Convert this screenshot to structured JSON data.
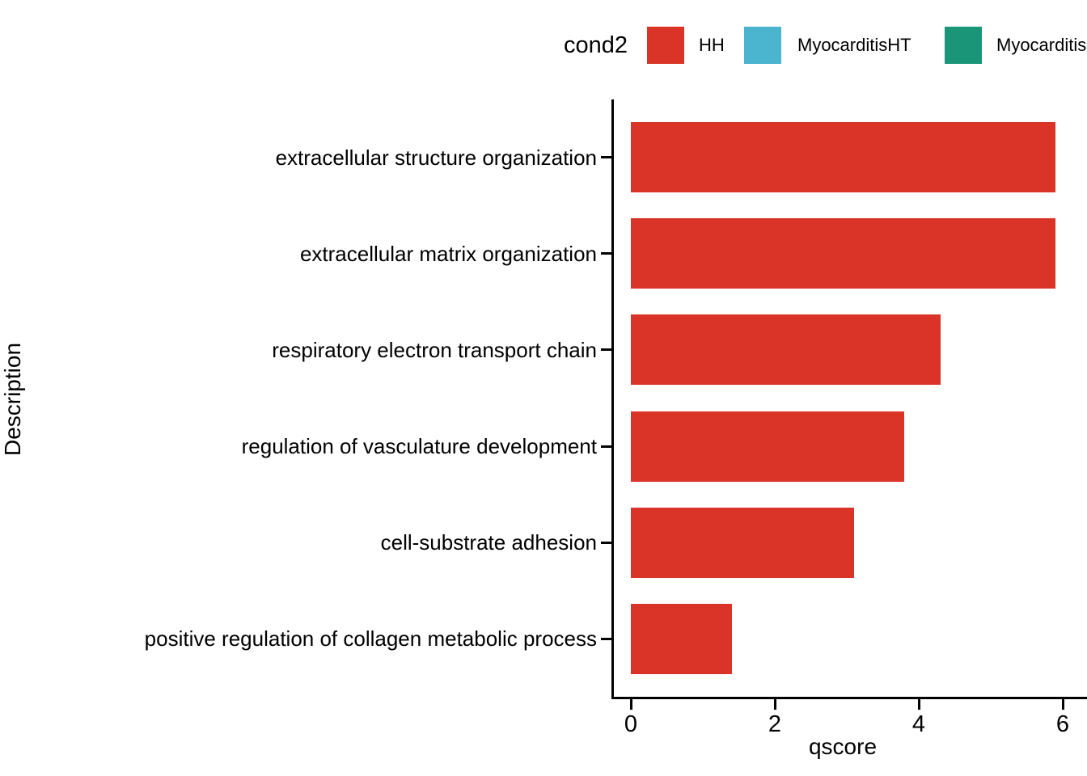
{
  "chart_data": {
    "type": "bar",
    "orientation": "horizontal",
    "xlabel": "qscore",
    "ylabel": "Description",
    "categories": [
      "extracellular structure organization",
      "extracellular matrix organization",
      "respiratory electron transport chain",
      "regulation of vasculature development",
      "cell-substrate adhesion",
      "positive regulation of collagen metabolic process"
    ],
    "values": [
      5.9,
      5.9,
      4.3,
      3.8,
      3.1,
      1.4
    ],
    "series_name": "HH",
    "bar_color": "#DA3327",
    "xticks": [
      0,
      2,
      4,
      6
    ],
    "xlim": [
      0,
      6.3
    ],
    "grid": "off",
    "legend": {
      "title": "cond2",
      "position": "top",
      "entries": [
        {
          "label": "HH",
          "color": "#DA3327",
          "clipped": false
        },
        {
          "label": "MyocarditisHT",
          "color": "#4BB4CE",
          "clipped": false
        },
        {
          "label": "Myocarditis",
          "color": "#1A9577",
          "clipped": true
        }
      ]
    },
    "axis_color": "#000000",
    "text_color": "#000000"
  }
}
